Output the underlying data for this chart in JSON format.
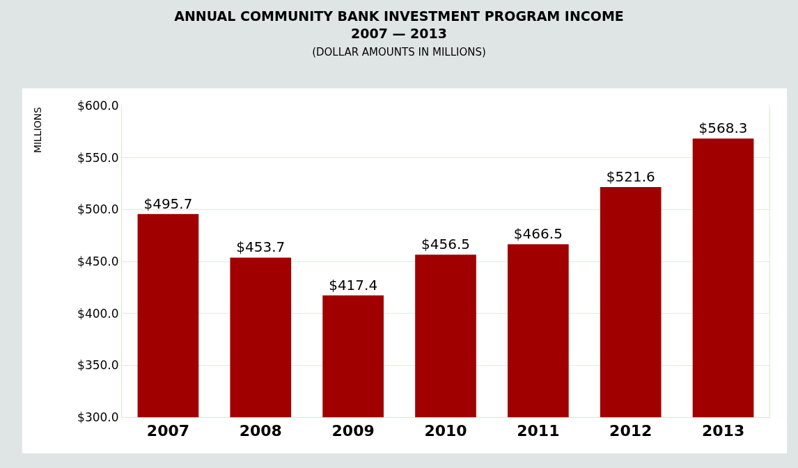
{
  "chart_data": {
    "type": "bar",
    "title": "ANNUAL COMMUNITY BANK INVESTMENT PROGRAM INCOME\n2007 — 2013",
    "subtitle": "(DOLLAR AMOUNTS IN MILLIONS)",
    "ylabel": "MILLIONS",
    "categories": [
      "2007",
      "2008",
      "2009",
      "2010",
      "2011",
      "2012",
      "2013"
    ],
    "values": [
      495.7,
      453.7,
      417.4,
      456.5,
      466.5,
      521.6,
      568.3
    ],
    "value_labels": [
      "$495.7",
      "$453.7",
      "$417.4",
      "$456.5",
      "$466.5",
      "$521.6",
      "$568.3"
    ],
    "color": "#a00000",
    "ylim": [
      300,
      600
    ],
    "yticks": [
      {
        "value": 300,
        "label": "$300.0"
      },
      {
        "value": 350,
        "label": "$350.0"
      },
      {
        "value": 400,
        "label": "$400.0"
      },
      {
        "value": 450,
        "label": "$450.0"
      },
      {
        "value": 500,
        "label": "$500.0"
      },
      {
        "value": 550,
        "label": "$550.0"
      },
      {
        "value": 600,
        "label": "$600.0"
      }
    ],
    "grid": "y"
  }
}
